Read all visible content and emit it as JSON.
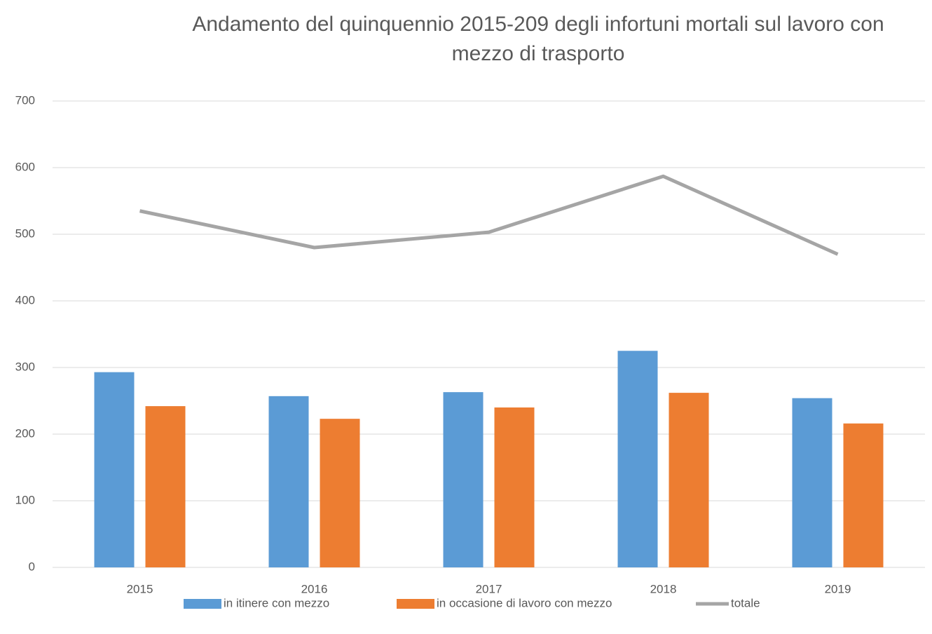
{
  "chart_data": {
    "type": "bar",
    "title": "Andamento del quinquennio 2015-209 degli infortuni mortali sul lavoro con mezzo di trasporto",
    "categories": [
      "2015",
      "2016",
      "2017",
      "2018",
      "2019"
    ],
    "series": [
      {
        "name": "in itinere con mezzo",
        "type": "bar",
        "color": "#5b9bd5",
        "values": [
          293,
          257,
          263,
          325,
          254
        ]
      },
      {
        "name": "in occasione di lavoro con mezzo",
        "type": "bar",
        "color": "#ed7d31",
        "values": [
          242,
          223,
          240,
          262,
          216
        ]
      },
      {
        "name": "totale",
        "type": "line",
        "color": "#a5a5a5",
        "values": [
          535,
          480,
          503,
          587,
          470
        ]
      }
    ],
    "ylim": [
      0,
      700
    ],
    "yticks": [
      0,
      100,
      200,
      300,
      400,
      500,
      600,
      700
    ],
    "grid": true,
    "legend": "bottom"
  }
}
